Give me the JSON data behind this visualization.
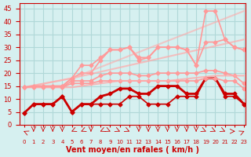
{
  "xlabel": "Vent moyen/en rafales ( km/h )",
  "ylabel": "",
  "bg_color": "#d6f0f0",
  "grid_color": "#b0d8d8",
  "x_ticks": [
    0,
    1,
    2,
    3,
    4,
    5,
    6,
    7,
    8,
    9,
    10,
    11,
    12,
    13,
    14,
    15,
    16,
    17,
    18,
    19,
    20,
    21,
    22,
    23
  ],
  "ylim": [
    0,
    47
  ],
  "xlim": [
    0,
    23
  ],
  "yticks": [
    0,
    5,
    10,
    15,
    20,
    25,
    30,
    35,
    40,
    45
  ],
  "lines": [
    {
      "x": [
        0,
        1,
        2,
        3,
        4,
        5,
        6,
        7,
        8,
        9,
        10,
        11,
        12,
        13,
        14,
        15,
        16,
        17,
        18,
        19,
        20,
        21,
        22,
        23
      ],
      "y": [
        4.5,
        8,
        8,
        8,
        11,
        5,
        8,
        8,
        8,
        8,
        8,
        11,
        11,
        8,
        8,
        8,
        11,
        11,
        11,
        18,
        18,
        11,
        11,
        8
      ],
      "color": "#cc0000",
      "lw": 1.2,
      "marker": "D",
      "markersize": 2.5,
      "alpha": 1.0
    },
    {
      "x": [
        0,
        1,
        2,
        3,
        4,
        5,
        6,
        7,
        8,
        9,
        10,
        11,
        12,
        13,
        14,
        15,
        16,
        17,
        18,
        19,
        20,
        21,
        22,
        23
      ],
      "y": [
        4.5,
        8,
        8,
        8,
        11,
        5,
        8,
        8,
        11,
        12,
        14,
        14,
        12,
        12,
        15,
        15,
        15,
        12,
        12,
        18,
        18,
        12,
        12,
        8
      ],
      "color": "#cc0000",
      "lw": 2.0,
      "marker": "D",
      "markersize": 2.5,
      "alpha": 1.0
    },
    {
      "x": [
        0,
        1,
        2,
        3,
        4,
        5,
        6,
        7,
        8,
        9,
        10,
        11,
        12,
        13,
        14,
        15,
        16,
        17,
        18,
        19,
        20,
        21,
        22,
        23
      ],
      "y": [
        14.5,
        14.5,
        14.5,
        14.5,
        14.5,
        16,
        16,
        16,
        17,
        17,
        17,
        17,
        17,
        17,
        17,
        17,
        17,
        17,
        17,
        18,
        18,
        17,
        17,
        14
      ],
      "color": "#ff9999",
      "lw": 1.2,
      "marker": "D",
      "markersize": 2.5,
      "alpha": 1.0
    },
    {
      "x": [
        0,
        1,
        2,
        3,
        4,
        5,
        6,
        7,
        8,
        9,
        10,
        11,
        12,
        13,
        14,
        15,
        16,
        17,
        18,
        19,
        20,
        21,
        22,
        23
      ],
      "y": [
        14.5,
        14.5,
        14.5,
        14.5,
        14.5,
        17,
        17,
        17,
        19,
        20,
        20,
        20,
        19,
        19,
        20,
        20,
        20,
        20,
        20,
        21,
        21,
        20,
        19,
        16
      ],
      "color": "#ff9999",
      "lw": 1.2,
      "marker": "D",
      "markersize": 2.5,
      "alpha": 1.0
    },
    {
      "x": [
        0,
        5,
        10,
        15,
        20,
        23
      ],
      "y": [
        14.5,
        14.5,
        17,
        17,
        19,
        19
      ],
      "color": "#ffaaaa",
      "lw": 1.5,
      "marker": null,
      "markersize": 0,
      "alpha": 0.8
    },
    {
      "x": [
        0,
        5,
        23
      ],
      "y": [
        14.5,
        18,
        33
      ],
      "color": "#ffaaaa",
      "lw": 1.5,
      "marker": null,
      "markersize": 0,
      "alpha": 0.7
    },
    {
      "x": [
        0,
        1,
        2,
        3,
        4,
        5,
        6,
        7,
        8,
        9,
        10,
        11,
        12,
        13,
        14,
        15,
        16,
        17,
        18,
        19,
        20,
        21,
        22,
        23
      ],
      "y": [
        14.5,
        15,
        15,
        15,
        15,
        18,
        20,
        20,
        25,
        29,
        29,
        30,
        26,
        26,
        30,
        30,
        30,
        29,
        23,
        32,
        32,
        33,
        30,
        29
      ],
      "color": "#ff9999",
      "lw": 1.2,
      "marker": "D",
      "markersize": 2.5,
      "alpha": 1.0
    },
    {
      "x": [
        0,
        5,
        23
      ],
      "y": [
        14.5,
        18,
        44
      ],
      "color": "#ffaaaa",
      "lw": 1.5,
      "marker": null,
      "markersize": 0,
      "alpha": 0.6
    },
    {
      "x": [
        0,
        1,
        2,
        3,
        4,
        5,
        6,
        7,
        8,
        9,
        10,
        11,
        12,
        13,
        14,
        15,
        16,
        17,
        18,
        19,
        20,
        21,
        22,
        23
      ],
      "y": [
        14.5,
        15,
        15,
        15,
        15,
        18,
        23,
        23,
        26,
        29,
        29,
        30,
        25,
        26,
        30,
        30,
        30,
        29,
        23,
        44,
        44,
        33,
        30,
        29
      ],
      "color": "#ff9999",
      "lw": 1.2,
      "marker": "D",
      "markersize": 2.5,
      "alpha": 1.0
    }
  ],
  "arrow_color": "#cc0000",
  "tick_color": "#cc0000",
  "label_color": "#cc0000",
  "axis_color": "#cc0000"
}
